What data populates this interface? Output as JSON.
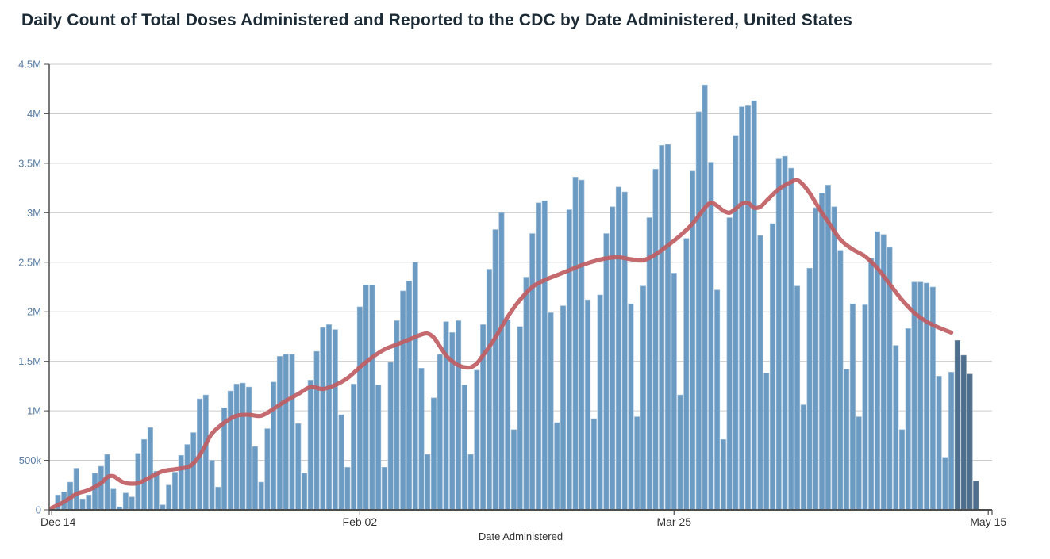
{
  "colors": {
    "background": "#ffffff",
    "title_text": "#1c2b36",
    "bar_fill": "#6b9ac2",
    "bar_edge": "#9dbdd8",
    "bar_dark_fill": "#4d6e8d",
    "bar_dark_edge": "#7089a0",
    "average_line": "#c05d63",
    "gridline": "#cccccc",
    "axis_line": "#4d4d4d",
    "y_tick_label": "#5b7da4",
    "x_tick_label": "#333333",
    "axis_title_text": "#333333"
  },
  "chart_data": {
    "type": "bar",
    "title": "Daily Count of Total Doses Administered and Reported to the CDC by Date Administered, United States",
    "xlabel": "Date Administered",
    "ylabel": "",
    "unit": "doses (millions)",
    "ylim_millions": [
      0,
      4.5
    ],
    "x_span_days": 152,
    "grid": "horizontal-only",
    "legend": "none",
    "y_ticks": [
      {
        "v": 0,
        "label": "0"
      },
      {
        "v": 0.5,
        "label": "500k"
      },
      {
        "v": 1,
        "label": "1M"
      },
      {
        "v": 1.5,
        "label": "1.5M"
      },
      {
        "v": 2,
        "label": "2M"
      },
      {
        "v": 2.5,
        "label": "2.5M"
      },
      {
        "v": 3,
        "label": "3M"
      },
      {
        "v": 3.5,
        "label": "3.5M"
      },
      {
        "v": 4,
        "label": "4M"
      },
      {
        "v": 4.5,
        "label": "4.5M"
      }
    ],
    "x_ticks": [
      {
        "day": 0,
        "label": "Dec 14"
      },
      {
        "day": 50,
        "label": "Feb 02"
      },
      {
        "day": 101,
        "label": "Mar 25"
      },
      {
        "day": 152,
        "label": "May 15"
      }
    ],
    "darker_final_bars": 4,
    "series": [
      {
        "name": "daily-doses-administered",
        "type": "bar",
        "unit": "millions",
        "first_bar_date": "Dec 14",
        "values": [
          0.01,
          0.15,
          0.18,
          0.28,
          0.42,
          0.11,
          0.15,
          0.37,
          0.44,
          0.56,
          0.21,
          0.03,
          0.17,
          0.13,
          0.57,
          0.71,
          0.83,
          0.39,
          0.05,
          0.25,
          0.38,
          0.55,
          0.66,
          0.78,
          1.12,
          1.16,
          0.5,
          0.23,
          1.03,
          1.2,
          1.27,
          1.28,
          1.24,
          0.64,
          0.28,
          0.82,
          1.29,
          1.55,
          1.57,
          1.57,
          0.87,
          0.37,
          1.31,
          1.6,
          1.84,
          1.87,
          1.82,
          0.96,
          0.43,
          1.27,
          2.05,
          2.27,
          2.27,
          1.26,
          0.43,
          1.49,
          1.91,
          2.21,
          2.31,
          2.5,
          1.43,
          0.56,
          1.13,
          1.57,
          1.9,
          1.79,
          1.91,
          1.26,
          0.56,
          1.41,
          1.87,
          2.43,
          2.83,
          3.0,
          1.92,
          0.81,
          1.85,
          2.35,
          2.79,
          3.1,
          3.12,
          1.99,
          0.88,
          2.06,
          3.03,
          3.36,
          3.33,
          2.12,
          0.92,
          2.17,
          2.79,
          3.06,
          3.26,
          3.21,
          2.08,
          0.94,
          2.26,
          2.95,
          3.44,
          3.68,
          3.69,
          2.39,
          1.16,
          2.74,
          3.42,
          4.02,
          4.29,
          3.51,
          2.22,
          0.71,
          2.95,
          3.78,
          4.07,
          4.08,
          4.13,
          2.77,
          1.38,
          2.89,
          3.55,
          3.57,
          3.45,
          2.26,
          1.06,
          2.44,
          3.05,
          3.2,
          3.28,
          3.06,
          2.62,
          1.42,
          2.08,
          0.94,
          2.07,
          2.54,
          2.81,
          2.78,
          2.65,
          1.66,
          0.81,
          1.83,
          2.3,
          2.3,
          2.29,
          2.25,
          1.35,
          0.53,
          1.39,
          1.71,
          1.56,
          1.37,
          0.29
        ]
      },
      {
        "name": "seven-day-rolling-average",
        "type": "line",
        "unit": "millions",
        "points": [
          [
            0,
            0.02
          ],
          [
            2,
            0.08
          ],
          [
            4,
            0.16
          ],
          [
            6,
            0.2
          ],
          [
            8,
            0.27
          ],
          [
            9,
            0.33
          ],
          [
            10,
            0.34
          ],
          [
            11,
            0.3
          ],
          [
            12,
            0.27
          ],
          [
            14,
            0.27
          ],
          [
            16,
            0.33
          ],
          [
            18,
            0.39
          ],
          [
            20,
            0.41
          ],
          [
            22,
            0.43
          ],
          [
            23,
            0.47
          ],
          [
            24,
            0.55
          ],
          [
            25,
            0.66
          ],
          [
            26,
            0.77
          ],
          [
            28,
            0.88
          ],
          [
            30,
            0.95
          ],
          [
            32,
            0.96
          ],
          [
            34,
            0.95
          ],
          [
            36,
            1.02
          ],
          [
            38,
            1.1
          ],
          [
            40,
            1.17
          ],
          [
            42,
            1.24
          ],
          [
            44,
            1.22
          ],
          [
            46,
            1.26
          ],
          [
            48,
            1.33
          ],
          [
            50,
            1.44
          ],
          [
            52,
            1.54
          ],
          [
            54,
            1.62
          ],
          [
            56,
            1.67
          ],
          [
            58,
            1.72
          ],
          [
            60,
            1.77
          ],
          [
            61,
            1.78
          ],
          [
            62,
            1.74
          ],
          [
            63,
            1.65
          ],
          [
            64,
            1.56
          ],
          [
            65,
            1.5
          ],
          [
            66,
            1.46
          ],
          [
            67,
            1.44
          ],
          [
            68,
            1.44
          ],
          [
            69,
            1.48
          ],
          [
            70,
            1.56
          ],
          [
            72,
            1.74
          ],
          [
            74,
            1.95
          ],
          [
            76,
            2.12
          ],
          [
            78,
            2.25
          ],
          [
            80,
            2.32
          ],
          [
            82,
            2.37
          ],
          [
            84,
            2.42
          ],
          [
            86,
            2.47
          ],
          [
            88,
            2.51
          ],
          [
            90,
            2.54
          ],
          [
            92,
            2.55
          ],
          [
            94,
            2.53
          ],
          [
            96,
            2.52
          ],
          [
            98,
            2.58
          ],
          [
            100,
            2.67
          ],
          [
            102,
            2.77
          ],
          [
            104,
            2.89
          ],
          [
            106,
            3.05
          ],
          [
            107,
            3.1
          ],
          [
            108,
            3.07
          ],
          [
            109,
            3.02
          ],
          [
            110,
            3.0
          ],
          [
            111,
            3.04
          ],
          [
            112,
            3.09
          ],
          [
            113,
            3.1
          ],
          [
            114,
            3.05
          ],
          [
            115,
            3.06
          ],
          [
            116,
            3.12
          ],
          [
            118,
            3.24
          ],
          [
            120,
            3.31
          ],
          [
            121,
            3.33
          ],
          [
            122,
            3.28
          ],
          [
            123,
            3.2
          ],
          [
            124,
            3.1
          ],
          [
            125,
            3.0
          ],
          [
            126,
            2.91
          ],
          [
            128,
            2.73
          ],
          [
            130,
            2.63
          ],
          [
            132,
            2.56
          ],
          [
            134,
            2.44
          ],
          [
            136,
            2.28
          ],
          [
            138,
            2.12
          ],
          [
            140,
            1.99
          ],
          [
            142,
            1.9
          ],
          [
            144,
            1.84
          ],
          [
            146,
            1.79
          ]
        ]
      }
    ]
  }
}
